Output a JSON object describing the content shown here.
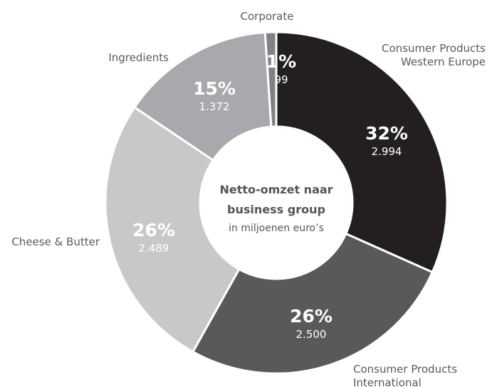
{
  "chart_data": {
    "type": "pie",
    "title_lines": [
      "Netto-omzet naar",
      "business group"
    ],
    "subtitle": "in miljoenen euro’s",
    "slices": [
      {
        "label_lines": [
          "Consumer Products",
          "Western Europe"
        ],
        "percent_label": "32%",
        "value_label": "2.994",
        "value": 2994,
        "color": "#231f20",
        "text_color": "#ffffff"
      },
      {
        "label_lines": [
          "Consumer Products",
          "International"
        ],
        "percent_label": "26%",
        "value_label": "2.500",
        "value": 2500,
        "color": "#58595b",
        "text_color": "#ffffff"
      },
      {
        "label_lines": [
          "Cheese & Butter"
        ],
        "percent_label": "26%",
        "value_label": "2.489",
        "value": 2489,
        "color": "#c7c8ca",
        "text_color": "#ffffff"
      },
      {
        "label_lines": [
          "Ingredients"
        ],
        "percent_label": "15%",
        "value_label": "1.372",
        "value": 1372,
        "color": "#a7a9ac",
        "text_color": "#ffffff"
      },
      {
        "label_lines": [
          "Corporate"
        ],
        "percent_label": "1%",
        "value_label": "99",
        "value": 99,
        "color": "#808285",
        "text_color": "#ffffff"
      }
    ]
  }
}
